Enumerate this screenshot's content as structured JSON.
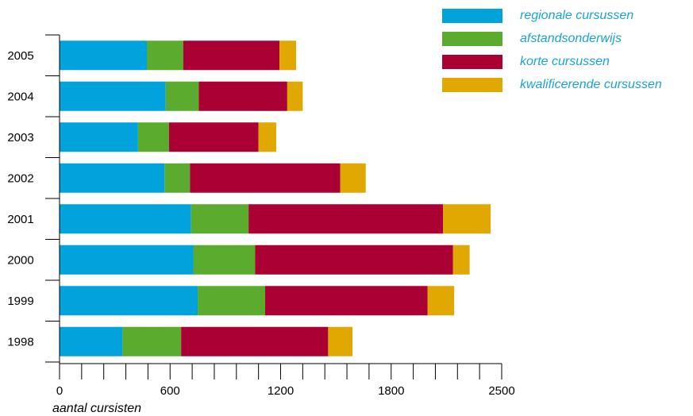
{
  "chart_data": {
    "type": "bar",
    "orientation": "horizontal",
    "stacked": true,
    "categories": [
      "2005",
      "2004",
      "2003",
      "2002",
      "2001",
      "2000",
      "1999",
      "1998"
    ],
    "series": [
      {
        "name": "regionale cursussen",
        "color": "#00a3dc",
        "values": [
          395,
          480,
          355,
          475,
          595,
          605,
          625,
          285
        ]
      },
      {
        "name": "afstandsonderwijs",
        "color": "#5aab2e",
        "values": [
          165,
          150,
          140,
          115,
          260,
          280,
          305,
          265
        ]
      },
      {
        "name": "korte cursussen",
        "color": "#aa0033",
        "values": [
          435,
          400,
          405,
          680,
          880,
          895,
          735,
          665
        ]
      },
      {
        "name": "kwalificerende cursussen",
        "color": "#e0a800",
        "values": [
          75,
          70,
          80,
          115,
          215,
          75,
          120,
          110
        ]
      }
    ],
    "xlim": [
      0,
      2000
    ],
    "xticks": [
      0,
      600,
      1200,
      1800,
      2500
    ],
    "xlabel": "aantal cursisten",
    "ylabel": "",
    "title": "",
    "legend_position": "top-right",
    "grid": false
  }
}
